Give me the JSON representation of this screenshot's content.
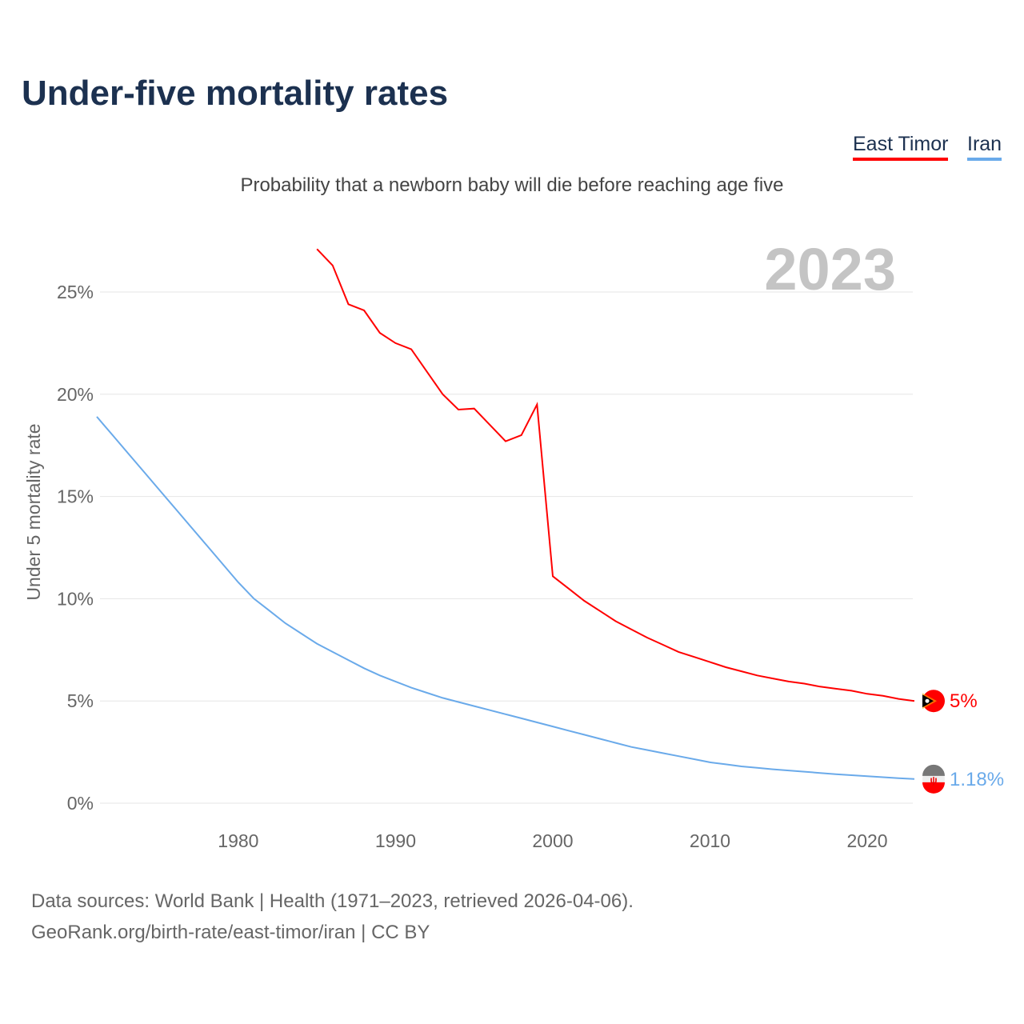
{
  "title": "Under-five mortality rates",
  "subtitle": "Probability that a newborn baby will die before reaching age five",
  "source_line1": "Data sources: World Bank | Health (1971–2023, retrieved 2026-04-06).",
  "source_line2": "GeoRank.org/birth-rate/east-timor/iran | CC BY",
  "chart_data": {
    "type": "line",
    "title": "Under-five mortality rates",
    "ylabel": "Under 5 mortality rate",
    "xlabel": "",
    "year_label": "2023",
    "xlim": [
      1971,
      2023
    ],
    "ylim": [
      0,
      27
    ],
    "xticks": [
      1980,
      1990,
      2000,
      2010,
      2020
    ],
    "yticks": [
      0,
      5,
      10,
      15,
      20,
      25
    ],
    "ytick_labels": [
      "0%",
      "5%",
      "10%",
      "15%",
      "20%",
      "25%"
    ],
    "grid": true,
    "legend_position": "top-right",
    "series": [
      {
        "name": "East Timor",
        "color": "#ff0000",
        "end_label": "5%",
        "flag": "east-timor-flag",
        "x": [
          1985,
          1986,
          1987,
          1988,
          1989,
          1990,
          1991,
          1992,
          1993,
          1994,
          1995,
          1996,
          1997,
          1998,
          1999,
          2000,
          2001,
          2002,
          2003,
          2004,
          2005,
          2006,
          2007,
          2008,
          2009,
          2010,
          2011,
          2012,
          2013,
          2014,
          2015,
          2016,
          2017,
          2018,
          2019,
          2020,
          2021,
          2022,
          2023
        ],
        "values": [
          27.1,
          26.3,
          24.4,
          24.1,
          23.0,
          22.5,
          22.2,
          21.1,
          20.0,
          19.25,
          19.3,
          18.5,
          17.7,
          18.0,
          19.5,
          11.1,
          10.5,
          9.9,
          9.4,
          8.9,
          8.5,
          8.1,
          7.75,
          7.4,
          7.15,
          6.9,
          6.65,
          6.45,
          6.25,
          6.1,
          5.95,
          5.85,
          5.7,
          5.6,
          5.5,
          5.35,
          5.25,
          5.1,
          5.0
        ]
      },
      {
        "name": "Iran",
        "color": "#6aaaea",
        "end_label": "1.18%",
        "flag": "iran-flag",
        "x": [
          1971,
          1972,
          1973,
          1974,
          1975,
          1976,
          1977,
          1978,
          1979,
          1980,
          1981,
          1982,
          1983,
          1984,
          1985,
          1986,
          1987,
          1988,
          1989,
          1990,
          1991,
          1992,
          1993,
          1994,
          1995,
          1996,
          1997,
          1998,
          1999,
          2000,
          2001,
          2002,
          2003,
          2004,
          2005,
          2006,
          2007,
          2008,
          2009,
          2010,
          2011,
          2012,
          2013,
          2014,
          2015,
          2016,
          2017,
          2018,
          2019,
          2020,
          2021,
          2022,
          2023
        ],
        "values": [
          18.9,
          18.0,
          17.1,
          16.2,
          15.3,
          14.4,
          13.5,
          12.6,
          11.7,
          10.8,
          10.0,
          9.4,
          8.8,
          8.3,
          7.8,
          7.4,
          7.0,
          6.6,
          6.25,
          5.95,
          5.65,
          5.4,
          5.15,
          4.95,
          4.75,
          4.55,
          4.35,
          4.15,
          3.95,
          3.75,
          3.55,
          3.35,
          3.15,
          2.95,
          2.75,
          2.6,
          2.45,
          2.3,
          2.15,
          2.0,
          1.9,
          1.8,
          1.73,
          1.66,
          1.6,
          1.54,
          1.48,
          1.42,
          1.37,
          1.32,
          1.27,
          1.22,
          1.18
        ]
      }
    ]
  }
}
